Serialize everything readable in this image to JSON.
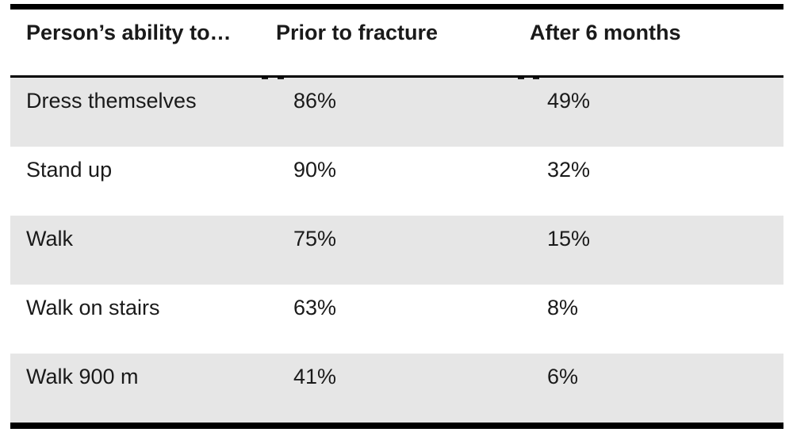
{
  "table": {
    "headers": {
      "ability": "Person’s ability to…",
      "prior": "Prior to fracture",
      "after": "After 6 months"
    },
    "rows": [
      {
        "label": "Dress themselves",
        "prior": "86%",
        "after": "49%"
      },
      {
        "label": "Stand up",
        "prior": "90%",
        "after": "32%"
      },
      {
        "label": "Walk",
        "prior": "75%",
        "after": "15%"
      },
      {
        "label": "Walk on stairs",
        "prior": "63%",
        "after": "8%"
      },
      {
        "label": "Walk 900 m",
        "prior": "41%",
        "after": "6%"
      }
    ],
    "colors": {
      "row_shade": "#e6e6e6",
      "rule": "#000000",
      "text": "#1a1a1a"
    }
  }
}
